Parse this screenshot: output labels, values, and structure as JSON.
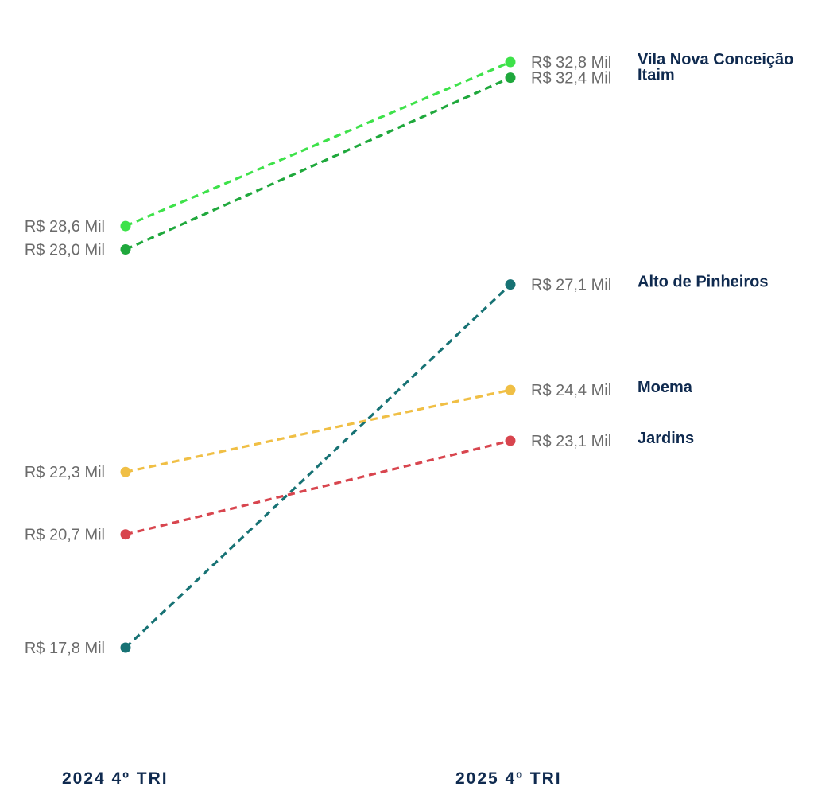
{
  "chart_data": {
    "type": "line",
    "title": "",
    "xlabel": "",
    "ylabel": "",
    "categories": [
      "2024 4º TRI",
      "2025 4º TRI"
    ],
    "value_unit": "R$ Mil",
    "ylim": [
      14.5,
      34.2
    ],
    "grid": false,
    "legend": "none",
    "series": [
      {
        "name": "Vila Nova Conceição",
        "values": [
          28.6,
          32.8
        ],
        "labels": [
          "R$ 28,6 Mil",
          "R$ 32,8 Mil"
        ],
        "color": "#3ee24a"
      },
      {
        "name": "Itaim",
        "values": [
          28.0,
          32.4
        ],
        "labels": [
          "R$ 28,0 Mil",
          "R$ 32,4 Mil"
        ],
        "color": "#1fa83c"
      },
      {
        "name": "Alto de Pinheiros",
        "values": [
          17.8,
          27.1
        ],
        "labels": [
          "R$ 17,8 Mil",
          "R$ 27,1 Mil"
        ],
        "color": "#177274"
      },
      {
        "name": "Moema",
        "values": [
          22.3,
          24.4
        ],
        "labels": [
          "R$ 22,3 Mil",
          "R$ 24,4 Mil"
        ],
        "color": "#f0bf45"
      },
      {
        "name": "Jardins",
        "values": [
          20.7,
          23.1
        ],
        "labels": [
          "R$ 20,7 Mil",
          "R$ 23,1 Mil"
        ],
        "color": "#d8454e"
      }
    ]
  }
}
